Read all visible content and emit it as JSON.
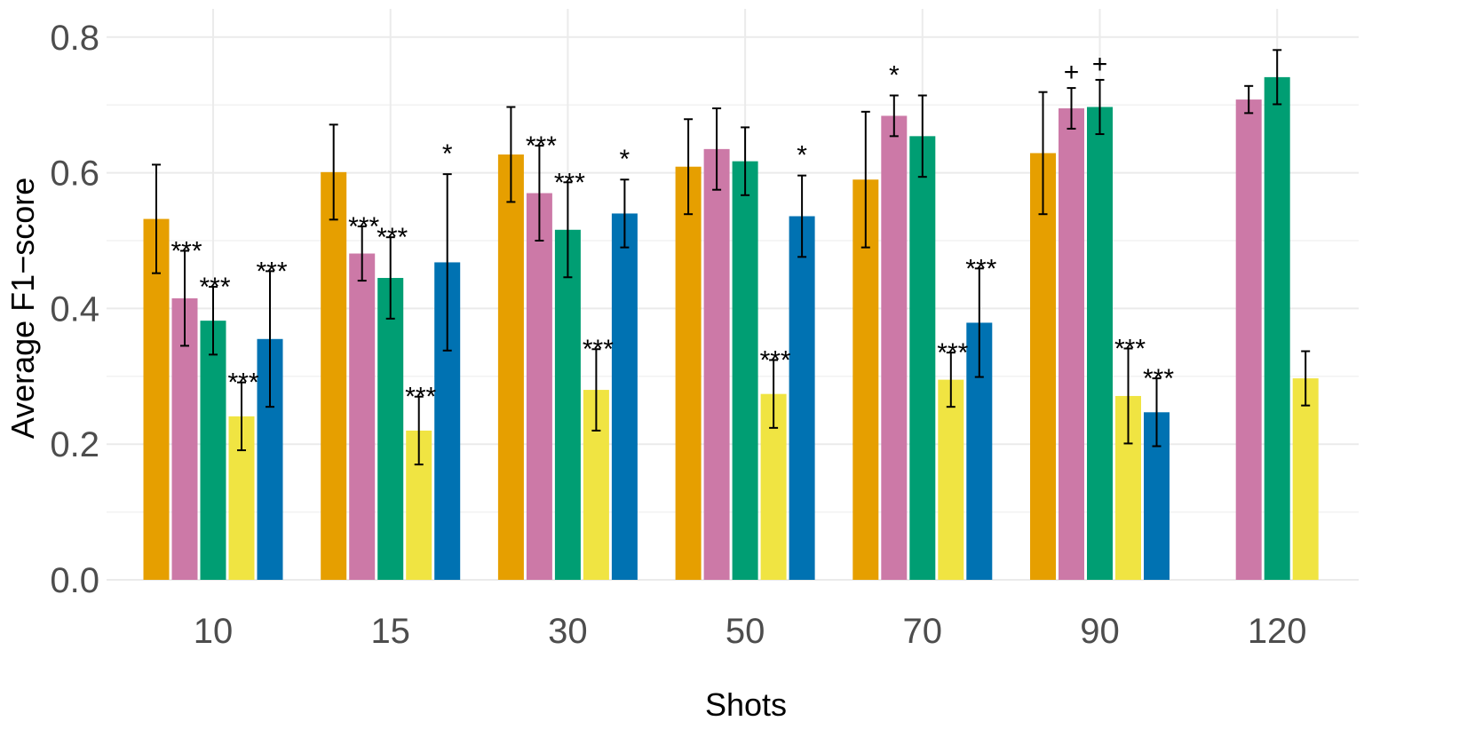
{
  "chart_data": {
    "type": "bar",
    "xlabel": "Shots",
    "ylabel": "Average F1−score",
    "ylim": [
      0,
      0.84
    ],
    "yticks": [
      0.0,
      0.2,
      0.4,
      0.6,
      0.8
    ],
    "ytick_labels": [
      "0.0",
      "0.2",
      "0.4",
      "0.6",
      "0.8"
    ],
    "grid": true,
    "legend": "none",
    "categories": [
      "10",
      "15",
      "30",
      "50",
      "70",
      "90",
      "120"
    ],
    "colors": [
      "#E69F00",
      "#CC79A7",
      "#009E73",
      "#F0E442",
      "#0072B2"
    ],
    "series": [
      {
        "color": "#E69F00",
        "values": [
          0.532,
          0.601,
          0.627,
          0.609,
          0.59,
          0.629,
          null
        ],
        "errors": [
          0.08,
          0.07,
          0.07,
          0.07,
          0.1,
          0.09,
          null
        ],
        "sig": [
          "",
          "",
          "",
          "",
          "",
          "",
          ""
        ]
      },
      {
        "color": "#CC79A7",
        "values": [
          0.415,
          0.481,
          0.57,
          0.635,
          0.684,
          0.695,
          0.708
        ],
        "errors": [
          0.07,
          0.04,
          0.07,
          0.06,
          0.03,
          0.03,
          0.02
        ],
        "sig": [
          "***",
          "***",
          "***",
          "",
          "*",
          "+",
          ""
        ]
      },
      {
        "color": "#009E73",
        "values": [
          0.382,
          0.445,
          0.516,
          0.617,
          0.654,
          0.697,
          0.741
        ],
        "errors": [
          0.05,
          0.06,
          0.07,
          0.05,
          0.06,
          0.04,
          0.04
        ],
        "sig": [
          "***",
          "***",
          "***",
          "",
          "",
          "+",
          ""
        ]
      },
      {
        "color": "#F0E442",
        "values": [
          0.241,
          0.22,
          0.28,
          0.274,
          0.295,
          0.271,
          0.297
        ],
        "errors": [
          0.05,
          0.05,
          0.06,
          0.05,
          0.04,
          0.07,
          0.04
        ],
        "sig": [
          "***",
          "***",
          "***",
          "***",
          "***",
          "***",
          ""
        ]
      },
      {
        "color": "#0072B2",
        "values": [
          0.355,
          0.468,
          0.54,
          0.536,
          0.379,
          0.247,
          null
        ],
        "errors": [
          0.1,
          0.13,
          0.05,
          0.06,
          0.08,
          0.05,
          null
        ],
        "sig": [
          "***",
          "*",
          "*",
          "*",
          "***",
          "***",
          ""
        ]
      }
    ]
  }
}
